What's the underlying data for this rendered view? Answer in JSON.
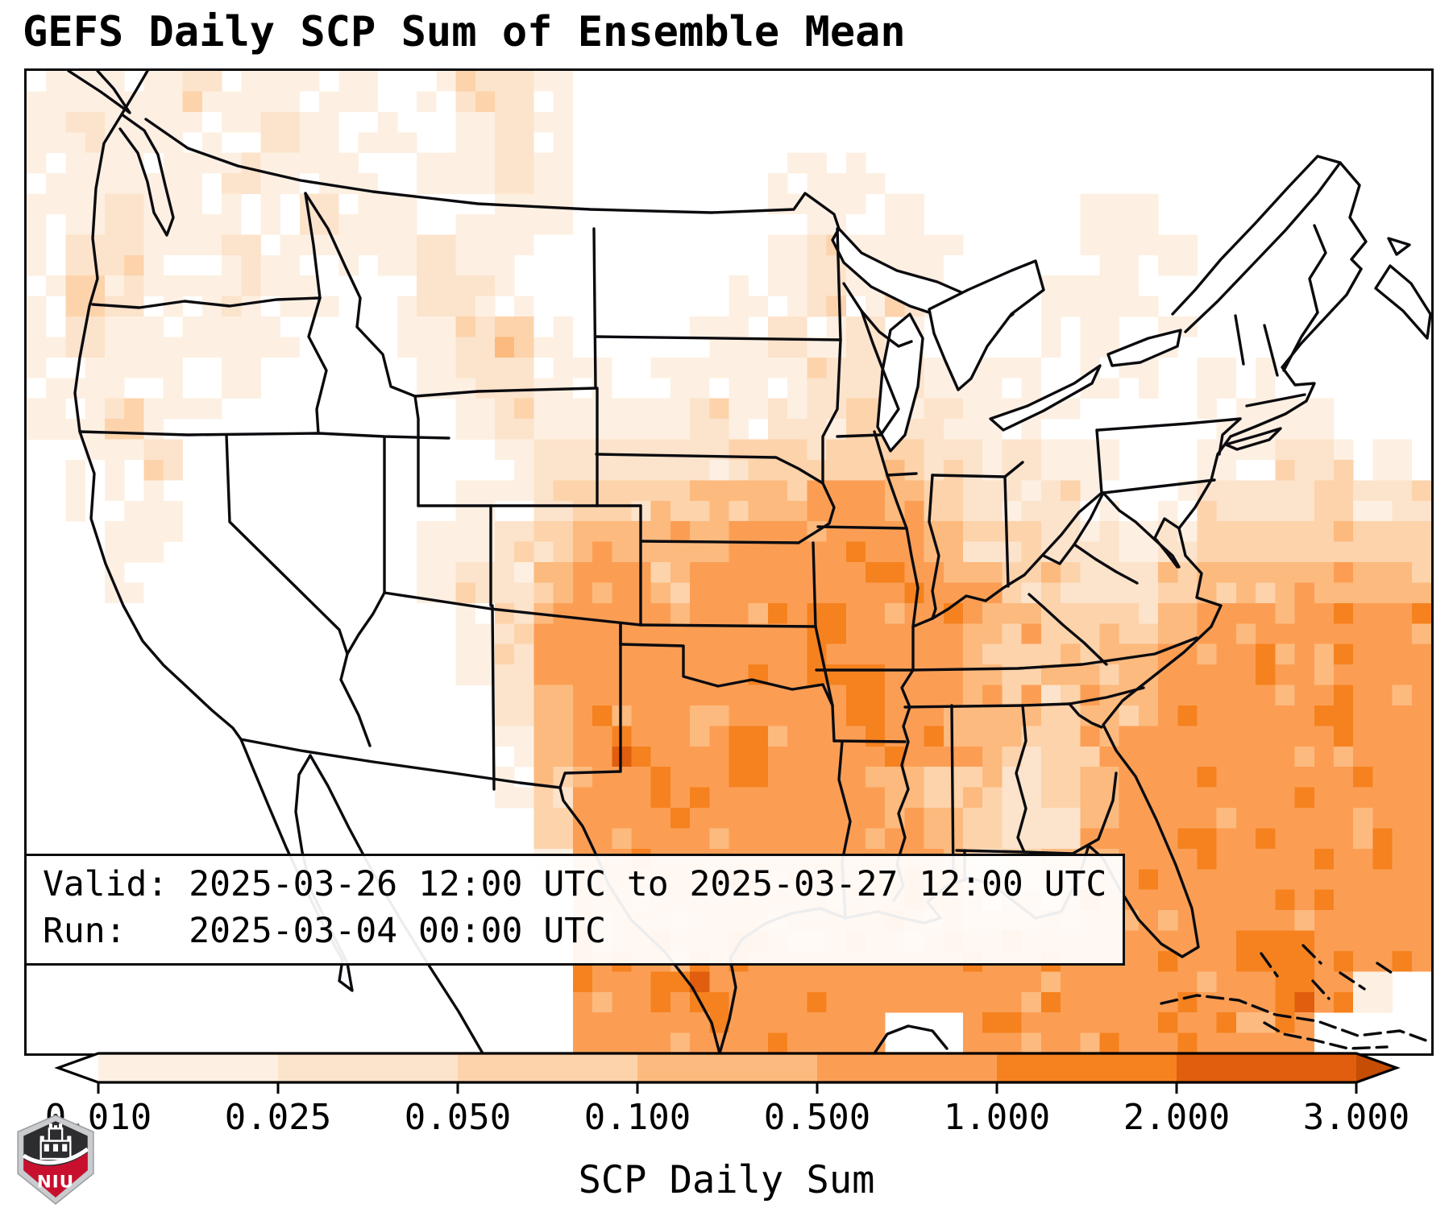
{
  "title": "GEFS Daily SCP Sum of Ensemble Mean",
  "info_box": {
    "line1": "Valid: 2025-03-26 12:00 UTC to 2025-03-27 12:00 UTC",
    "line2": "Run:   2025-03-04 00:00 UTC"
  },
  "colorbar": {
    "label": "SCP Daily Sum",
    "ticks": [
      "0.010",
      "0.025",
      "0.050",
      "0.100",
      "0.500",
      "1.000",
      "2.000",
      "3.000"
    ],
    "segment_colors": [
      "#fdf0e2",
      "#fce3cb",
      "#fdd3ab",
      "#fcba7e",
      "#fb9e54",
      "#f5821f",
      "#e05e0d"
    ],
    "under_color": "#ffffff",
    "over_color": "#c54e04",
    "outline_color": "#000000"
  },
  "heatmap": {
    "level_bins": [
      "< 0.010",
      "0.010-0.025",
      "0.025-0.050",
      "0.050-0.100",
      "0.100-0.500",
      "0.500-1.000",
      "1.000-2.000",
      "2.000-3.000"
    ],
    "level_colors": [
      "#ffffff",
      "#fdf0e2",
      "#fce3cb",
      "#fdd3ab",
      "#fcba7e",
      "#fb9e54",
      "#f5821f",
      "#e05e0d"
    ],
    "grid_rows": [
      "111121111012210000000000000000000000",
      "121111211101210000000000000000000000",
      "111112111011210000011100000000000000",
      "112111121101110000011110000110000000",
      "122112111121100000012111000111000000",
      "132112110122100000112121001110000000",
      "121111100112310001121211001101000000",
      "111101000012211011112221110110110000",
      "112110000001211112122322111000111100",
      "011200000000122222333332221100112211",
      "011100000001123334445543222101222322",
      "001100000011234444555554332212333333",
      "001000000012245545555555433223444444",
      "000000000001355555556555443334555555",
      "000000000001255555556555434445555555",
      "000000000000245555555655443445555555",
      "000000000000145655655555433455555555",
      "000000000000135555655543423455555555",
      "000000000000025555555554322455555555",
      "000000000000015555555555334455555555",
      "000000000000005555555555444555555555",
      "000000000000005555655555555555566555",
      "000000000000005566555555555555556510",
      "000000000000005555555500555555555000"
    ]
  },
  "map": {
    "stroke_color": "#0b0b0f",
    "lake_fill": "#ffffff"
  },
  "logo": {
    "text": "NIU",
    "red": "#c8102e",
    "dark": "#2d2d30",
    "silver": "#c9cbce"
  }
}
